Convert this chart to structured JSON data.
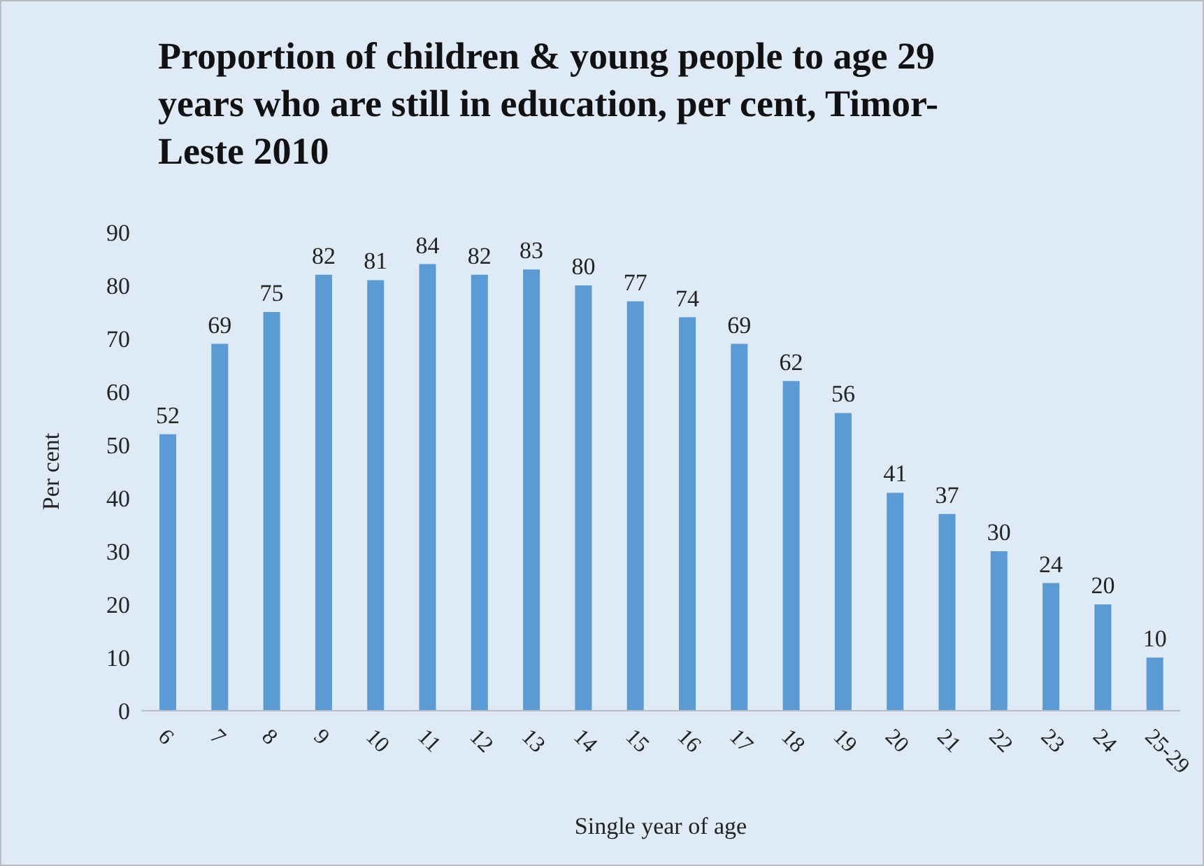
{
  "chart_data": {
    "type": "bar",
    "title": "Proportion of children & young people to age 29 years who are still in education, per cent, Timor-Leste 2010",
    "xlabel": "Single year of age",
    "ylabel": "Per cent",
    "categories": [
      "6",
      "7",
      "8",
      "9",
      "10",
      "11",
      "12",
      "13",
      "14",
      "15",
      "16",
      "17",
      "18",
      "19",
      "20",
      "21",
      "22",
      "23",
      "24",
      "25-29"
    ],
    "values": [
      52,
      69,
      75,
      82,
      81,
      84,
      82,
      83,
      80,
      77,
      74,
      69,
      62,
      56,
      41,
      37,
      30,
      24,
      20,
      10
    ],
    "color": "#5b9bd5",
    "ylim": [
      0,
      90
    ],
    "yticks": [
      0,
      10,
      20,
      30,
      40,
      50,
      60,
      70,
      80,
      90
    ],
    "grid": false,
    "data_labels": true
  }
}
